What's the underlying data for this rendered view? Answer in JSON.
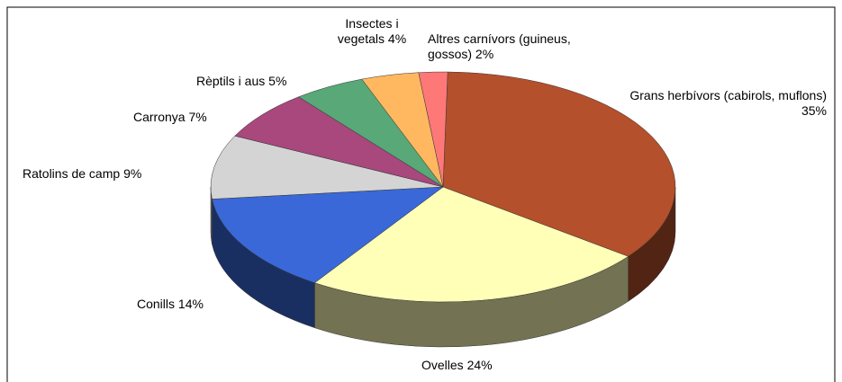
{
  "chart_data": {
    "type": "pie",
    "categories": [
      "Grans herbívors (cabirols, muflons)",
      "Ovelles",
      "Conills",
      "Ratolins de camp",
      "Carronya",
      "Rèptils i aus",
      "Insectes i vegetals",
      "Altres carnívors (guineus, gossos)"
    ],
    "values": [
      35,
      24,
      14,
      9,
      7,
      5,
      4,
      2
    ],
    "value_labels": [
      "35%",
      "24%",
      "14%",
      "9%",
      "7%",
      "5%",
      "4%",
      "2%"
    ],
    "colors": [
      "#b4502c",
      "#ffffb8",
      "#3a68d8",
      "#d4d4d4",
      "#a8487c",
      "#58a878",
      "#ffb860",
      "#ff7878"
    ]
  }
}
